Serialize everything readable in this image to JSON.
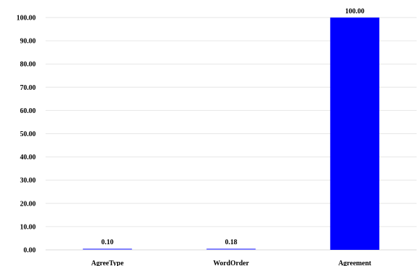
{
  "chart_data": {
    "type": "bar",
    "title": "",
    "xlabel": "",
    "ylabel": "",
    "categories": [
      "AgreeType",
      "WordOrder",
      "Agreement"
    ],
    "values": [
      0.1,
      0.18,
      100.0
    ],
    "value_labels": [
      "0.10",
      "0.18",
      "100.00"
    ],
    "ylim": [
      0,
      100
    ],
    "yticks": [
      0,
      10,
      20,
      30,
      40,
      50,
      60,
      70,
      80,
      90,
      100
    ],
    "ytick_labels": [
      "0.00",
      "10.00",
      "20.00",
      "30.00",
      "40.00",
      "50.00",
      "60.00",
      "70.00",
      "80.00",
      "90.00",
      "100.00"
    ],
    "grid": true,
    "legend": "none",
    "bar_color": "#0000ff",
    "small_bar_color": "#8080ff"
  }
}
